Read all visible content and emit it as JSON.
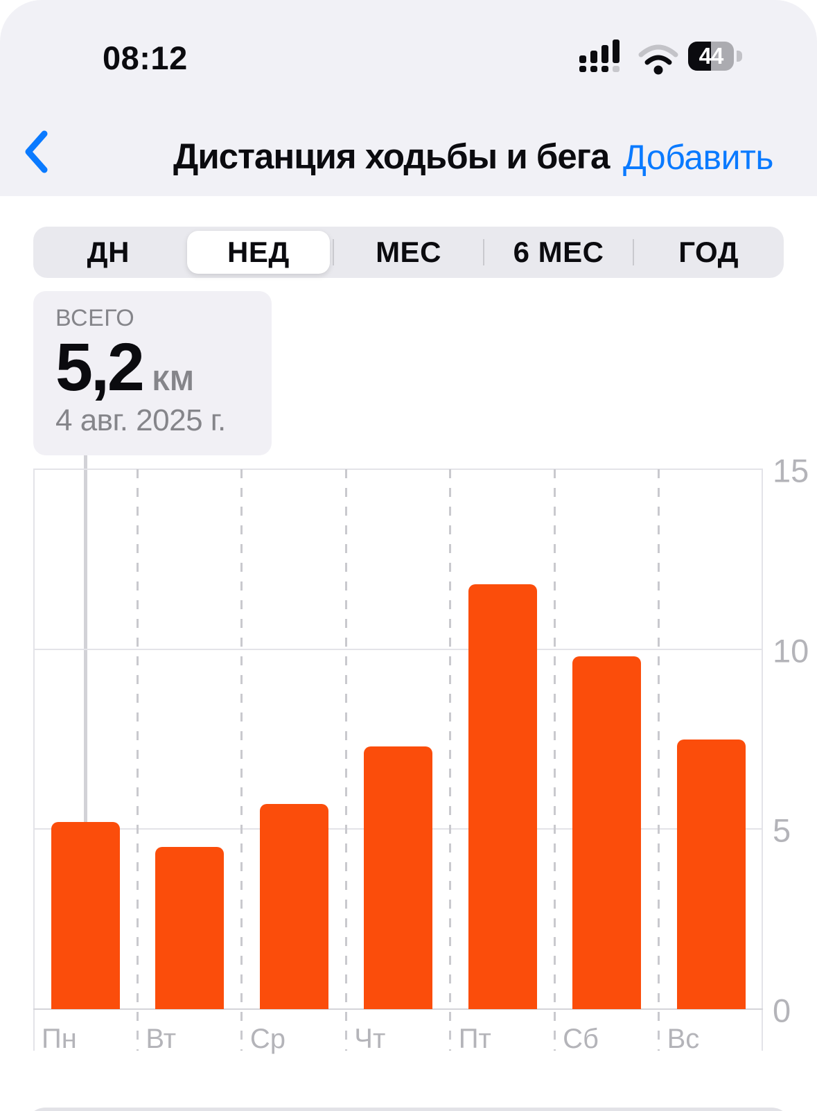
{
  "status_bar": {
    "time": "08:12",
    "battery_percent": "44"
  },
  "nav": {
    "back_icon": "chevron-left",
    "title": "Дистанция ходьбы и бега",
    "add_label": "Добавить"
  },
  "segmented": {
    "options": [
      "ДН",
      "НЕД",
      "МЕС",
      "6 МЕС",
      "ГОД"
    ],
    "selected_index": 1
  },
  "summary": {
    "label": "ВСЕГО",
    "value": "5,2",
    "unit": "КМ",
    "date": "4 авг. 2025 г."
  },
  "chart_data": {
    "type": "bar",
    "title": "Дистанция ходьбы и бега — неделя",
    "categories": [
      "Пн",
      "Вт",
      "Ср",
      "Чт",
      "Пт",
      "Сб",
      "Вс"
    ],
    "values": [
      5.2,
      4.5,
      5.7,
      7.3,
      11.8,
      9.8,
      7.5
    ],
    "xlabel": "",
    "ylabel": "км",
    "ylim": [
      0,
      15
    ],
    "yticks": [
      15,
      10,
      5,
      0
    ],
    "grid": "horizontal solid + vertical dashed day separators",
    "legend": "none",
    "bar_color": "#FB4D0B",
    "selected_category": "Пн",
    "selected_value": 5.2
  },
  "colors": {
    "accent_orange": "#FB4D0B",
    "accent_blue": "#0A7AFF",
    "header_bg": "#F1F1F6",
    "card_bg": "#F1F0F5",
    "secondary_text": "#85858A",
    "axis_text": "#B4B4B9"
  }
}
